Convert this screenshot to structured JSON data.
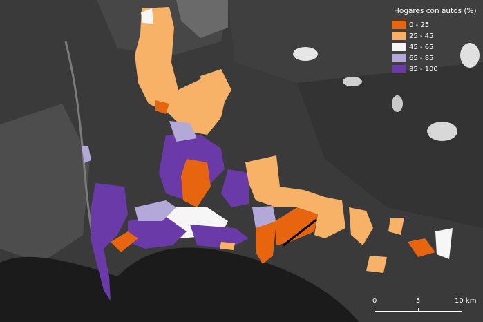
{
  "legend": {
    "title": "Hogares con autos (%)",
    "items": [
      {
        "label": "0 - 25",
        "color": "#e8650f"
      },
      {
        "label": "25 - 45",
        "color": "#f7b267"
      },
      {
        "label": "45 - 65",
        "color": "#f6f6f6"
      },
      {
        "label": "65 - 85",
        "color": "#b3a9d8"
      },
      {
        "label": "85 - 100",
        "color": "#6a3aa8"
      }
    ]
  },
  "scalebar": {
    "labels": [
      "0",
      "5",
      "10 km"
    ]
  },
  "colors": {
    "water": "#1b1b1b",
    "land_dark": "#2f2f2f",
    "land_mid": "#4a4a4a",
    "land_light": "#5e5e5e",
    "cloud": "#e6e6e6"
  }
}
